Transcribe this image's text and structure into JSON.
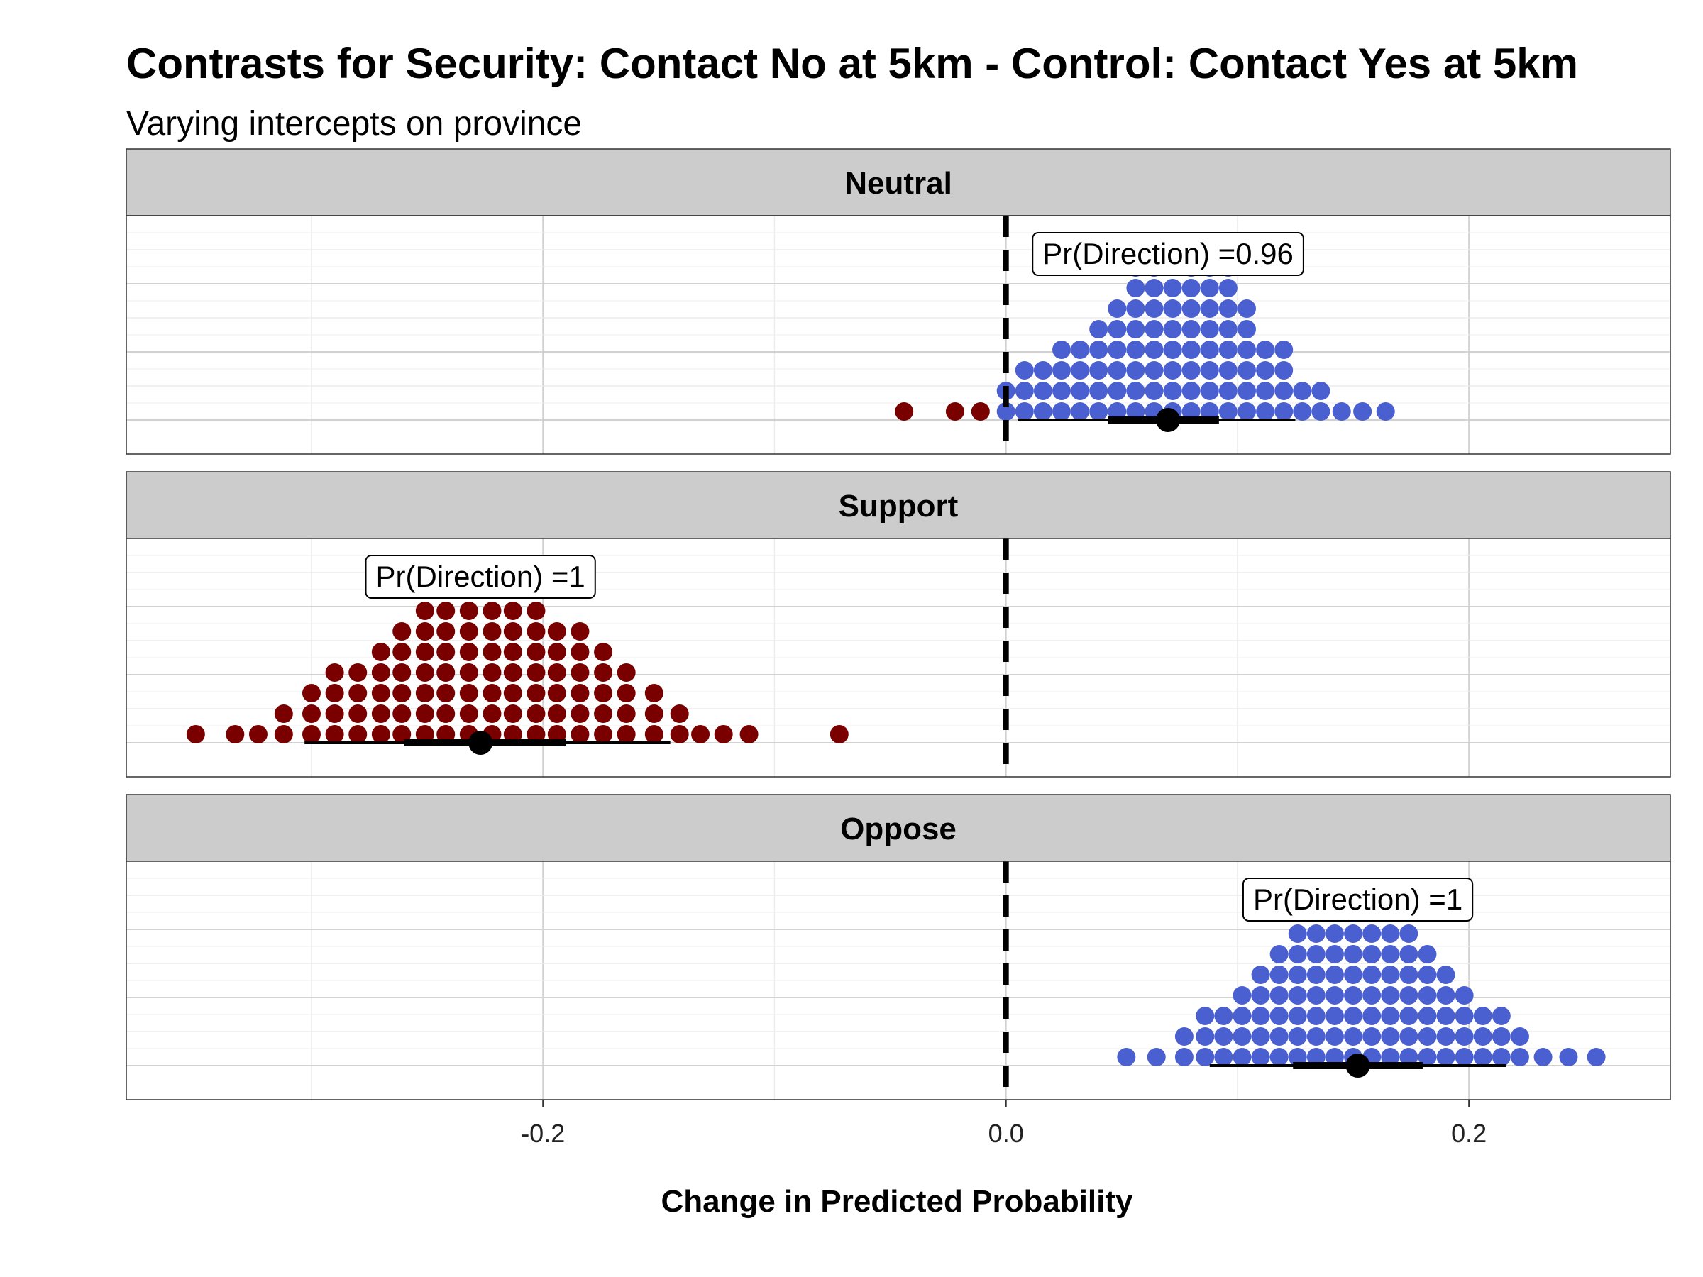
{
  "chart_data": {
    "type": "scatter",
    "subtype": "dotplot-faceted",
    "title": "Contrasts for Security: Contact No at 5km - Control: Contact Yes at 5km",
    "subtitle": "Varying intercepts on province",
    "xlabel": "Change in Predicted Probability",
    "xlim": [
      -0.38,
      0.287
    ],
    "x_ticks": [
      -0.2,
      0.0,
      0.2
    ],
    "x_tick_labels": [
      "-0.2",
      "0.0",
      "0.2"
    ],
    "reference_line_x": 0.0,
    "grid": true,
    "colors": {
      "positive": "#4a5fd0",
      "negative": "#7a0000",
      "strip": "#cccccc",
      "point": "#000000"
    },
    "panels": [
      {
        "name": "Neutral",
        "pr_direction_label": "Pr(Direction) =0.96",
        "label_x": 0.07,
        "median": 0.07,
        "interval_66": [
          0.044,
          0.092
        ],
        "interval_95": [
          0.005,
          0.125
        ],
        "stacks": [
          {
            "x": -0.044,
            "n": 1
          },
          {
            "x": -0.022,
            "n": 1
          },
          {
            "x": -0.011,
            "n": 1
          },
          {
            "x": 0.0,
            "n": 2
          },
          {
            "x": 0.008,
            "n": 3
          },
          {
            "x": 0.016,
            "n": 3
          },
          {
            "x": 0.024,
            "n": 4
          },
          {
            "x": 0.032,
            "n": 4
          },
          {
            "x": 0.04,
            "n": 5
          },
          {
            "x": 0.048,
            "n": 6
          },
          {
            "x": 0.056,
            "n": 8
          },
          {
            "x": 0.064,
            "n": 8
          },
          {
            "x": 0.072,
            "n": 7
          },
          {
            "x": 0.08,
            "n": 9
          },
          {
            "x": 0.088,
            "n": 9
          },
          {
            "x": 0.096,
            "n": 8
          },
          {
            "x": 0.104,
            "n": 6
          },
          {
            "x": 0.112,
            "n": 4
          },
          {
            "x": 0.12,
            "n": 4
          },
          {
            "x": 0.128,
            "n": 2
          },
          {
            "x": 0.136,
            "n": 2
          },
          {
            "x": 0.145,
            "n": 1
          },
          {
            "x": 0.154,
            "n": 1
          },
          {
            "x": 0.164,
            "n": 1
          }
        ]
      },
      {
        "name": "Support",
        "pr_direction_label": "Pr(Direction) =1",
        "label_x": -0.227,
        "median": -0.227,
        "interval_66": [
          -0.26,
          -0.19
        ],
        "interval_95": [
          -0.303,
          -0.145
        ],
        "stacks": [
          {
            "x": -0.35,
            "n": 1
          },
          {
            "x": -0.333,
            "n": 1
          },
          {
            "x": -0.323,
            "n": 1
          },
          {
            "x": -0.312,
            "n": 2
          },
          {
            "x": -0.3,
            "n": 3
          },
          {
            "x": -0.29,
            "n": 4
          },
          {
            "x": -0.28,
            "n": 4
          },
          {
            "x": -0.27,
            "n": 5
          },
          {
            "x": -0.261,
            "n": 6
          },
          {
            "x": -0.251,
            "n": 7
          },
          {
            "x": -0.242,
            "n": 7
          },
          {
            "x": -0.232,
            "n": 7
          },
          {
            "x": -0.222,
            "n": 7
          },
          {
            "x": -0.213,
            "n": 7
          },
          {
            "x": -0.203,
            "n": 7
          },
          {
            "x": -0.194,
            "n": 6
          },
          {
            "x": -0.184,
            "n": 6
          },
          {
            "x": -0.174,
            "n": 5
          },
          {
            "x": -0.164,
            "n": 4
          },
          {
            "x": -0.152,
            "n": 3
          },
          {
            "x": -0.141,
            "n": 2
          },
          {
            "x": -0.132,
            "n": 1
          },
          {
            "x": -0.122,
            "n": 1
          },
          {
            "x": -0.111,
            "n": 1
          },
          {
            "x": -0.072,
            "n": 1
          }
        ]
      },
      {
        "name": "Oppose",
        "pr_direction_label": "Pr(Direction) =1",
        "label_x": 0.152,
        "median": 0.152,
        "interval_66": [
          0.124,
          0.18
        ],
        "interval_95": [
          0.088,
          0.216
        ],
        "stacks": [
          {
            "x": 0.052,
            "n": 1
          },
          {
            "x": 0.065,
            "n": 1
          },
          {
            "x": 0.077,
            "n": 2
          },
          {
            "x": 0.086,
            "n": 3
          },
          {
            "x": 0.094,
            "n": 3
          },
          {
            "x": 0.102,
            "n": 4
          },
          {
            "x": 0.11,
            "n": 5
          },
          {
            "x": 0.118,
            "n": 6
          },
          {
            "x": 0.126,
            "n": 7
          },
          {
            "x": 0.134,
            "n": 7
          },
          {
            "x": 0.142,
            "n": 7
          },
          {
            "x": 0.15,
            "n": 8
          },
          {
            "x": 0.158,
            "n": 7
          },
          {
            "x": 0.166,
            "n": 7
          },
          {
            "x": 0.174,
            "n": 7
          },
          {
            "x": 0.182,
            "n": 6
          },
          {
            "x": 0.19,
            "n": 5
          },
          {
            "x": 0.198,
            "n": 4
          },
          {
            "x": 0.206,
            "n": 3
          },
          {
            "x": 0.214,
            "n": 3
          },
          {
            "x": 0.222,
            "n": 2
          },
          {
            "x": 0.232,
            "n": 1
          },
          {
            "x": 0.243,
            "n": 1
          },
          {
            "x": 0.255,
            "n": 1
          }
        ]
      }
    ]
  }
}
